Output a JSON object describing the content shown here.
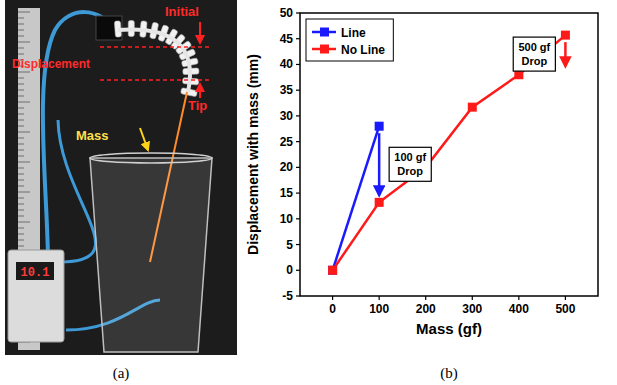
{
  "chart_data": {
    "type": "line",
    "x_label": "Mass (gf)",
    "y_label": "Displacement with mass (mm)",
    "x": [
      0,
      100,
      200,
      300,
      400,
      500
    ],
    "series": [
      {
        "name": "Line",
        "color": "#1a1aff",
        "marker": "square",
        "values": [
          0,
          28,
          null,
          null,
          null,
          null
        ]
      },
      {
        "name": "No Line",
        "color": "#ff1a1a",
        "marker": "square",
        "values": [
          0,
          13.2,
          20,
          31.7,
          38,
          45.7
        ]
      }
    ],
    "xlim": [
      -70,
      570
    ],
    "xticks": [
      0,
      100,
      200,
      300,
      400,
      500
    ],
    "ylim": [
      -5,
      50
    ],
    "yticks": [
      -5,
      0,
      5,
      10,
      15,
      20,
      25,
      30,
      35,
      40,
      45,
      50
    ],
    "grid": false,
    "legend": "upper left",
    "annotations": [
      {
        "text": "100 gf Drop",
        "x": 100
      },
      {
        "text": "500 gf Drop",
        "x": 500
      }
    ]
  },
  "photo": {
    "labels": {
      "initial": "Initial",
      "displacement": "Displacement",
      "tip": "Tip",
      "mass": "Mass"
    },
    "display": "10.1"
  },
  "panel_labels": [
    "(a)",
    "(b)"
  ]
}
